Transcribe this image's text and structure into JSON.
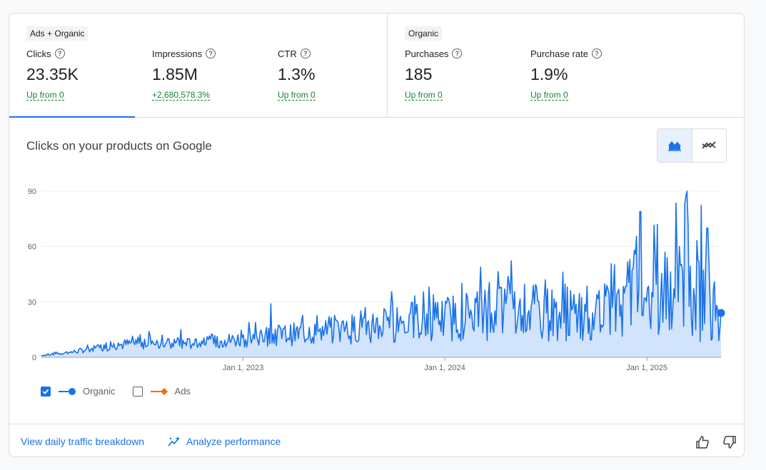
{
  "groups": {
    "ads_organic": {
      "tag": "Ads + Organic",
      "metrics": [
        {
          "label": "Clicks",
          "value": "23.35K",
          "change": "Up from 0"
        },
        {
          "label": "Impressions",
          "value": "1.85M",
          "change": "+2,680,578.3%"
        },
        {
          "label": "CTR",
          "value": "1.3%",
          "change": "Up from 0"
        }
      ]
    },
    "organic": {
      "tag": "Organic",
      "metrics": [
        {
          "label": "Purchases",
          "value": "185",
          "change": "Up from 0"
        },
        {
          "label": "Purchase rate",
          "value": "1.9%",
          "change": "Up from 0"
        }
      ]
    }
  },
  "chart": {
    "title": "Clicks on your products on Google",
    "view_toggle": {
      "active": "area-chart-icon",
      "other": "trend-chart-icon"
    }
  },
  "chart_data": {
    "type": "area",
    "x_start": "2022-01-01",
    "x_end": "2025-05-15",
    "ylim": [
      0,
      90
    ],
    "yticks": [
      "0",
      "30",
      "60",
      "90"
    ],
    "xtick_labels": [
      "Jan 1, 2023",
      "Jan 1, 2024",
      "Jan 1, 2025"
    ],
    "xtick_dates": [
      "2023-01-01",
      "2024-01-01",
      "2025-01-01"
    ],
    "grid": true,
    "series": [
      {
        "name": "Organic",
        "color": "#1a73e8",
        "fill": "#d2e3fc",
        "x": [
          "2022-01-01",
          "2022-03-01",
          "2022-05-01",
          "2022-07-01",
          "2022-09-01",
          "2022-11-01",
          "2023-01-01",
          "2023-03-01",
          "2023-05-01",
          "2023-07-01",
          "2023-09-01",
          "2023-11-01",
          "2024-01-01",
          "2024-03-01",
          "2024-05-01",
          "2024-07-01",
          "2024-09-01",
          "2024-11-01",
          "2025-01-01",
          "2025-02-01",
          "2025-03-01",
          "2025-04-01",
          "2025-05-15"
        ],
        "values": [
          1,
          3,
          6,
          8,
          7,
          8,
          10,
          12,
          13,
          15,
          17,
          19,
          21,
          24,
          25,
          24,
          22,
          26,
          38,
          42,
          48,
          46,
          24
        ],
        "peaks": [
          {
            "x": "2022-07-15",
            "value": 14
          },
          {
            "x": "2022-09-10",
            "value": 15
          },
          {
            "x": "2023-02-20",
            "value": 29
          },
          {
            "x": "2023-08-10",
            "value": 27
          },
          {
            "x": "2024-04-10",
            "value": 38
          },
          {
            "x": "2024-07-01",
            "value": 42
          },
          {
            "x": "2024-11-01",
            "value": 37
          },
          {
            "x": "2024-12-01",
            "value": 53
          },
          {
            "x": "2024-12-20",
            "value": 79
          },
          {
            "x": "2025-01-20",
            "value": 72
          },
          {
            "x": "2025-03-10",
            "value": 83
          },
          {
            "x": "2025-04-20",
            "value": 70
          }
        ],
        "last_value": 24
      },
      {
        "name": "Ads",
        "color": "#e8710a",
        "values": [],
        "visible": false
      }
    ]
  },
  "legend": [
    {
      "label": "Organic",
      "checked": true,
      "color": "#1a73e8"
    },
    {
      "label": "Ads",
      "checked": false,
      "color": "#e8710a"
    }
  ],
  "footer": {
    "daily_breakdown": "View daily traffic breakdown",
    "analyze": "Analyze performance"
  }
}
